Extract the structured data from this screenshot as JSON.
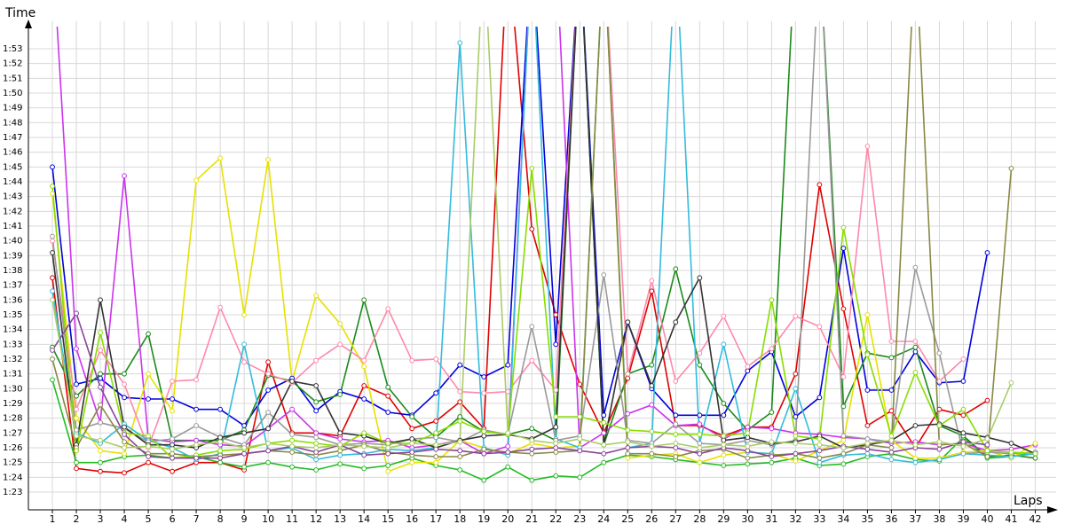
{
  "chart_data": {
    "type": "line",
    "y_label": "Time",
    "x_label": "Laps",
    "x": [
      1,
      2,
      3,
      4,
      5,
      6,
      7,
      8,
      9,
      10,
      11,
      12,
      13,
      14,
      15,
      16,
      17,
      18,
      19,
      20,
      21,
      22,
      23,
      24,
      25,
      26,
      27,
      28,
      29,
      30,
      31,
      32,
      33,
      34,
      35,
      36,
      37,
      38,
      39,
      40,
      41,
      42
    ],
    "xlim": [
      0,
      42.5
    ],
    "xticks": [
      1,
      2,
      3,
      4,
      5,
      6,
      7,
      8,
      9,
      10,
      11,
      12,
      13,
      14,
      15,
      16,
      17,
      18,
      19,
      20,
      21,
      22,
      23,
      24,
      25,
      26,
      27,
      28,
      29,
      30,
      31,
      32,
      33,
      34,
      35,
      36,
      37,
      38,
      39,
      40,
      41,
      42
    ],
    "ylim": [
      81.8,
      114.5
    ],
    "yticks": [
      {
        "value": 83,
        "label": "1:23"
      },
      {
        "value": 84,
        "label": "1:24"
      },
      {
        "value": 85,
        "label": "1:25"
      },
      {
        "value": 86,
        "label": "1:26"
      },
      {
        "value": 87,
        "label": "1:27"
      },
      {
        "value": 88,
        "label": "1:28"
      },
      {
        "value": 89,
        "label": "1:29"
      },
      {
        "value": 90,
        "label": "1:30"
      },
      {
        "value": 91,
        "label": "1:31"
      },
      {
        "value": 92,
        "label": "1:32"
      },
      {
        "value": 93,
        "label": "1:33"
      },
      {
        "value": 94,
        "label": "1:34"
      },
      {
        "value": 95,
        "label": "1:35"
      },
      {
        "value": 96,
        "label": "1:36"
      },
      {
        "value": 97,
        "label": "1:37"
      },
      {
        "value": 98,
        "label": "1:38"
      },
      {
        "value": 99,
        "label": "1:39"
      },
      {
        "value": 100,
        "label": "1:40"
      },
      {
        "value": 101,
        "label": "1:41"
      },
      {
        "value": 102,
        "label": "1:42"
      },
      {
        "value": 103,
        "label": "1:43"
      },
      {
        "value": 104,
        "label": "1:44"
      },
      {
        "value": 105,
        "label": "1:45"
      },
      {
        "value": 106,
        "label": "1:46"
      },
      {
        "value": 107,
        "label": "1:47"
      },
      {
        "value": 108,
        "label": "1:48"
      },
      {
        "value": 109,
        "label": "1:49"
      },
      {
        "value": 110,
        "label": "1:50"
      },
      {
        "value": 111,
        "label": "1:51"
      },
      {
        "value": 112,
        "label": "1:52"
      },
      {
        "value": 113,
        "label": "1:53"
      }
    ],
    "grid": true,
    "series": [
      {
        "color": "#e00000",
        "values": [
          97.5,
          84.6,
          84.4,
          84.3,
          85.0,
          84.4,
          85.0,
          85.0,
          84.5,
          91.8,
          87.0,
          87.0,
          86.8,
          90.2,
          89.5,
          87.3,
          87.8,
          89.1,
          87.3,
          120,
          100.8,
          95.0,
          90.3,
          87.0,
          90.7,
          96.6,
          87.5,
          87.5,
          86.8,
          87.4,
          87.4,
          91.0,
          103.8,
          95.4,
          87.5,
          88.5,
          86.0,
          88.6,
          88.2,
          89.2,
          null,
          null
        ]
      },
      {
        "color": "#0000dd",
        "values": [
          105,
          90.3,
          90.7,
          89.4,
          89.3,
          89.3,
          88.6,
          88.6,
          87.5,
          89.9,
          90.7,
          88.5,
          89.8,
          89.3,
          88.4,
          88.2,
          89.7,
          91.6,
          90.8,
          91.6,
          120,
          93.0,
          120,
          88.2,
          94.5,
          90.0,
          88.2,
          88.2,
          88.2,
          91.2,
          92.5,
          88.1,
          89.4,
          99.5,
          89.9,
          89.9,
          92.5,
          90.4,
          90.5,
          99.2,
          null,
          null
        ]
      },
      {
        "color": "#22bb22",
        "values": [
          90.6,
          85.0,
          85.0,
          85.4,
          85.5,
          85.3,
          85.4,
          85.0,
          84.7,
          85.0,
          84.7,
          84.5,
          84.9,
          84.6,
          84.8,
          85.3,
          84.8,
          84.5,
          83.8,
          84.7,
          83.8,
          84.1,
          84.0,
          85.0,
          85.5,
          85.4,
          85.2,
          85.0,
          84.8,
          84.9,
          85.0,
          85.3,
          84.8,
          84.9,
          85.4,
          85.6,
          85.2,
          85.1,
          86.7,
          85.3,
          85.4,
          85.7
        ]
      },
      {
        "color": "#1a8a1a",
        "values": [
          92.8,
          89.5,
          91.0,
          91.0,
          93.7,
          86.5,
          86.5,
          86.5,
          87.2,
          90.9,
          90.5,
          89.1,
          89.6,
          96.0,
          90.1,
          88.1,
          86.7,
          88.1,
          87.1,
          86.9,
          87.3,
          86.5,
          120,
          86.2,
          91.0,
          91.6,
          98.1,
          91.6,
          89.0,
          87.2,
          88.4,
          120,
          120,
          88.8,
          92.4,
          92.1,
          92.8,
          87.5,
          86.8,
          85.4,
          85.5,
          85.3
        ]
      },
      {
        "color": "#cc33ee",
        "values": [
          120,
          92.7,
          87.7,
          104.4,
          86.6,
          86.4,
          86.5,
          86.2,
          86.1,
          87.3,
          88.6,
          87.0,
          86.6,
          86.4,
          86.5,
          86.0,
          86.2,
          86.5,
          85.6,
          86.1,
          120,
          120,
          86.0,
          87.0,
          88.3,
          88.9,
          87.5,
          87.6,
          86.6,
          87.4,
          87.3,
          87.0,
          86.9,
          86.7,
          86.6,
          86.3,
          86.4,
          86.2,
          86.3,
          85.8,
          85.9,
          86.2
        ]
      },
      {
        "color": "#e8e000",
        "values": [
          103.2,
          88.0,
          85.8,
          85.6,
          91.0,
          88.5,
          104.1,
          105.6,
          95.0,
          105.5,
          90.5,
          96.3,
          94.4,
          91.5,
          84.4,
          85.0,
          85.0,
          86.5,
          86.0,
          85.6,
          86.3,
          86.0,
          86.1,
          120,
          85.3,
          85.5,
          85.6,
          85.0,
          85.5,
          85.7,
          85.6,
          85.1,
          85.8,
          86.5,
          95.0,
          86.5,
          85.3,
          85.3,
          85.7,
          85.8,
          85.3,
          86.3
        ]
      },
      {
        "color": "#ff88aa",
        "values": [
          100.0,
          88.6,
          92.6,
          90.3,
          86.0,
          90.5,
          90.6,
          95.5,
          91.8,
          91.0,
          90.4,
          91.9,
          93.0,
          91.9,
          95.4,
          91.9,
          92.0,
          89.8,
          89.7,
          89.8,
          91.9,
          89.9,
          120,
          120,
          91.0,
          97.3,
          90.5,
          92.4,
          94.9,
          91.5,
          92.7,
          94.9,
          94.2,
          90.8,
          106.4,
          93.2,
          93.2,
          90.5,
          92.0,
          null,
          null,
          null
        ]
      },
      {
        "color": "#33bbdd",
        "values": [
          96.6,
          87.0,
          86.3,
          87.6,
          86.5,
          86.0,
          85.2,
          85.6,
          93.0,
          85.8,
          86.0,
          85.2,
          85.5,
          85.6,
          85.9,
          85.8,
          86.0,
          113.4,
          86.0,
          85.5,
          120,
          86.6,
          86.0,
          120,
          86.0,
          86.3,
          120,
          86.3,
          93.0,
          85.7,
          85.6,
          90.0,
          85.0,
          85.5,
          85.6,
          85.2,
          85.0,
          85.2,
          85.6,
          85.5,
          85.4,
          85.6
        ]
      },
      {
        "color": "#999999",
        "values": [
          100.3,
          87.2,
          87.7,
          87.3,
          86.4,
          86.6,
          87.5,
          86.7,
          86.2,
          88.4,
          86.9,
          86.7,
          86.2,
          86.3,
          86.2,
          86.6,
          86.7,
          86.4,
          87.2,
          86.9,
          94.2,
          86.5,
          86.8,
          97.7,
          86.5,
          86.3,
          87.6,
          86.3,
          86.2,
          86.5,
          86.2,
          86.5,
          120,
          86.8,
          86.6,
          86.4,
          98.2,
          92.4,
          85.6,
          85.7,
          85.6,
          85.7
        ]
      },
      {
        "color": "#333333",
        "values": [
          99.2,
          86.2,
          96.0,
          87.4,
          86.2,
          86.2,
          86.0,
          86.7,
          87.0,
          87.3,
          90.5,
          90.2,
          87.0,
          86.8,
          86.3,
          86.6,
          86.0,
          86.5,
          86.8,
          86.9,
          86.6,
          87.4,
          120,
          86.2,
          94.5,
          90.2,
          94.5,
          97.5,
          86.5,
          86.7,
          86.3,
          86.4,
          86.8,
          86.0,
          86.2,
          86.5,
          87.5,
          87.6,
          87.0,
          86.7,
          86.3,
          85.6
        ]
      },
      {
        "color": "#888844",
        "values": [
          92.0,
          86.0,
          88.9,
          86.4,
          85.6,
          85.6,
          85.4,
          85.5,
          85.6,
          85.8,
          85.7,
          85.5,
          85.8,
          86.2,
          85.7,
          85.5,
          85.4,
          85.4,
          85.9,
          85.7,
          85.6,
          85.7,
          85.8,
          120,
          85.6,
          85.6,
          85.4,
          85.8,
          85.9,
          85.3,
          85.5,
          85.6,
          85.3,
          85.6,
          86.2,
          86.0,
          120,
          86.2,
          86.3,
          85.4,
          104.9,
          null
        ]
      },
      {
        "color": "#88dd00",
        "values": [
          103.7,
          85.8,
          93.8,
          87.0,
          86.8,
          85.3,
          85.5,
          85.8,
          85.9,
          86.3,
          86.5,
          86.3,
          86.1,
          87.0,
          86.3,
          86.3,
          87.0,
          87.8,
          87.1,
          86.9,
          104.9,
          88.1,
          88.1,
          87.7,
          87.2,
          87.1,
          86.9,
          86.9,
          86.8,
          87.0,
          96.0,
          86.8,
          86.6,
          100.9,
          92.3,
          86.8,
          91.1,
          87.5,
          88.6,
          85.8,
          85.7,
          85.6
        ]
      },
      {
        "color": "#884499",
        "values": [
          92.6,
          95.1,
          90.1,
          86.9,
          85.4,
          85.3,
          85.3,
          85.3,
          85.6,
          85.8,
          86.1,
          85.7,
          86.2,
          85.5,
          85.6,
          85.7,
          85.9,
          85.8,
          85.6,
          85.7,
          85.9,
          86.0,
          85.8,
          85.6,
          86.0,
          86.1,
          86.0,
          85.6,
          86.0,
          85.8,
          85.4,
          85.6,
          85.8,
          86.1,
          85.9,
          85.7,
          86.0,
          85.9,
          86.4,
          86.2,
          null,
          null
        ]
      },
      {
        "color": "#aacc66",
        "values": [
          96.0,
          86.8,
          86.5,
          86.0,
          86.1,
          85.9,
          86.2,
          86.4,
          86.0,
          86.3,
          86.1,
          86.0,
          86.2,
          86.1,
          86.0,
          86.3,
          86.2,
          86.4,
          120,
          87.0,
          86.5,
          86.3,
          86.6,
          86.2,
          86.4,
          86.1,
          86.3,
          86.0,
          86.2,
          86.1,
          86.4,
          86.3,
          86.2,
          86.0,
          86.3,
          86.5,
          86.2,
          86.4,
          86.1,
          86.6,
          90.4,
          null
        ]
      }
    ]
  }
}
